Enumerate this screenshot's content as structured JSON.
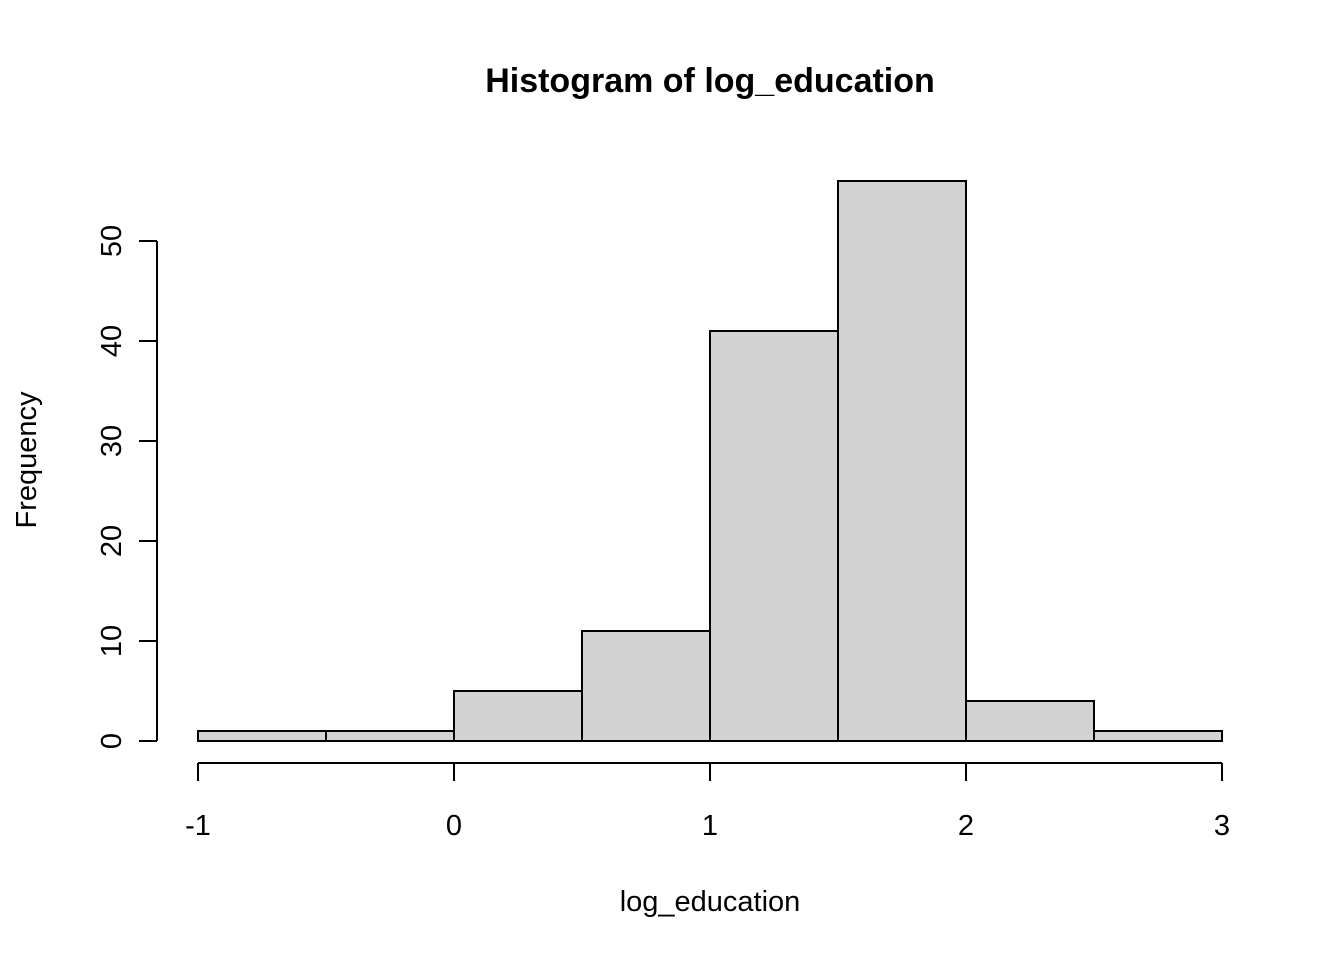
{
  "chart_data": {
    "type": "histogram",
    "title": "Histogram of log_education",
    "xlabel": "log_education",
    "ylabel": "Frequency",
    "bins": [
      {
        "start": -1.0,
        "end": -0.5,
        "count": 1
      },
      {
        "start": -0.5,
        "end": 0.0,
        "count": 1
      },
      {
        "start": 0.0,
        "end": 0.5,
        "count": 5
      },
      {
        "start": 0.5,
        "end": 1.0,
        "count": 11
      },
      {
        "start": 1.0,
        "end": 1.5,
        "count": 41
      },
      {
        "start": 1.5,
        "end": 2.0,
        "count": 56
      },
      {
        "start": 2.0,
        "end": 2.5,
        "count": 4
      },
      {
        "start": 2.5,
        "end": 3.0,
        "count": 1
      }
    ],
    "xlim": [
      -1,
      3
    ],
    "ylim": [
      0,
      56
    ],
    "x_ticks": [
      -1,
      0,
      1,
      2,
      3
    ],
    "x_tick_labels": [
      "-1",
      "0",
      "1",
      "2",
      "3"
    ],
    "y_ticks": [
      0,
      10,
      20,
      30,
      40,
      50
    ],
    "y_tick_labels": [
      "0",
      "10",
      "20",
      "30",
      "40",
      "50"
    ],
    "bar_fill": "#d3d3d3",
    "bar_stroke": "#000000",
    "grid": false
  }
}
